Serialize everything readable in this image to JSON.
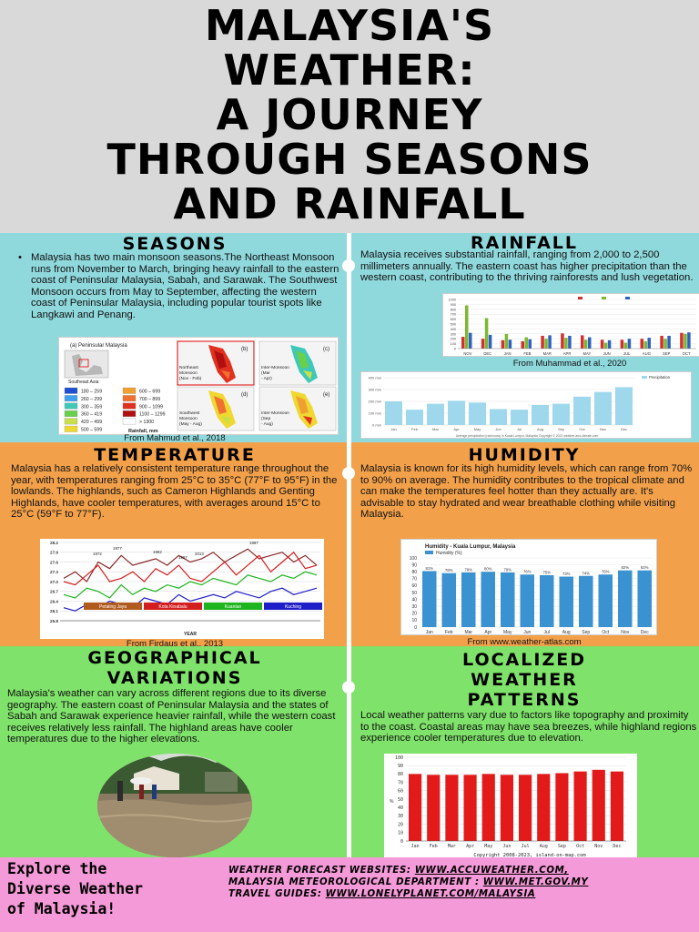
{
  "title": {
    "lines": [
      "MALAYSIA'S",
      "WEATHER:",
      "A JOURNEY",
      "THROUGH SEASONS",
      "AND RAINFALL"
    ]
  },
  "seasons": {
    "heading": "SEASONS",
    "text": "Malaysia has two main monsoon seasons.The Northeast Monsoon runs from November to March, bringing heavy rainfall to the eastern coast of Peninsular Malaysia, Sabah, and Sarawak. The Southwest Monsoon occurs from May to September, affecting the western coast of Peninsular Malaysia, including popular tourist spots like Langkawi and Penang.",
    "caption": "From Mahmud et al., 2018",
    "map": {
      "title": "(a) Peninsular Malaysia",
      "region_label": "Southeast Asia",
      "legend": [
        {
          "range": "180 – 259",
          "color": "#1f4fd1"
        },
        {
          "range": "260 – 299",
          "color": "#3fa0f0"
        },
        {
          "range": "300 – 359",
          "color": "#3fc8b8"
        },
        {
          "range": "360 – 419",
          "color": "#6ad04a"
        },
        {
          "range": "420 – 499",
          "color": "#c8e04a"
        },
        {
          "range": "500 – 599",
          "color": "#f0d830"
        },
        {
          "range": "600 – 699",
          "color": "#f0a030"
        },
        {
          "range": "700 – 899",
          "color": "#f07030"
        },
        {
          "range": "900 – 1099",
          "color": "#e03020"
        },
        {
          "range": "1100 – 1299",
          "color": "#b01010"
        },
        {
          "range": "> 1300",
          "color": "#ffffff"
        }
      ],
      "legend_unit": "Rainfall, mm",
      "panels": [
        {
          "tag": "(b)",
          "label": "Northeast Monsoon (Nov - Feb)"
        },
        {
          "tag": "(c)",
          "label": "Inter-Monsoon (Mar - Apr)"
        },
        {
          "tag": "(d)",
          "label": "Southwest Monsoon (May - Aug)"
        },
        {
          "tag": "(e)",
          "label": "Inter-Monsoon (Sep - Aug)"
        }
      ]
    }
  },
  "rainfall": {
    "heading": "RAINFALL",
    "text": "Malaysia receives substantial rainfall, ranging from 2,000 to 2,500 millimeters annually. The eastern coast has higher precipitation than the western coast, contributing to the thriving rainforests and lush vegetation.",
    "caption": "From Muhammad et al., 2020",
    "chart1": {
      "type": "bar",
      "categories": [
        "NOV",
        "DEC",
        "JAN",
        "FEB",
        "MAR",
        "APR",
        "MAY",
        "JUN",
        "JUL",
        "AUG",
        "SEP",
        "OCT"
      ],
      "ylim": [
        0,
        1000
      ],
      "yticks": [
        0,
        100,
        200,
        300,
        400,
        500,
        600,
        700,
        800,
        900,
        1000
      ],
      "series": [
        {
          "color": "#d23030",
          "values": [
            240,
            200,
            170,
            150,
            260,
            310,
            270,
            180,
            180,
            200,
            260,
            320
          ]
        },
        {
          "color": "#7cb830",
          "values": [
            880,
            620,
            300,
            230,
            200,
            220,
            180,
            120,
            120,
            150,
            200,
            300
          ]
        },
        {
          "color": "#3060c0",
          "values": [
            320,
            280,
            180,
            190,
            270,
            260,
            230,
            170,
            200,
            220,
            260,
            330
          ]
        }
      ]
    },
    "chart2": {
      "type": "bar",
      "legend": "Precipitation",
      "yticks": [
        "0 mm",
        "100 mm",
        "200 mm",
        "300 mm",
        "400 mm"
      ],
      "ylim": [
        0,
        400
      ],
      "categories": [
        "Jan",
        "Feb",
        "Mar",
        "Apr",
        "May",
        "Jun",
        "Jul",
        "Aug",
        "Sep",
        "Oct",
        "Nov",
        "Dec"
      ],
      "values": [
        200,
        130,
        180,
        205,
        190,
        135,
        130,
        170,
        180,
        240,
        280,
        320
      ],
      "source": "Average precipitation (rain/snow) in Kuala Lumpur, Malaysia    Copyright © 2023  weather-and-climate.com"
    }
  },
  "temperature": {
    "heading": "TEMPERATURE",
    "text": "Malaysia has a relatively consistent temperature range throughout the year, with temperatures ranging from 25°C to 35°C (77°F to 95°F) in the lowlands. The highlands, such as Cameron Highlands and Genting Highlands, have cooler temperatures, with averages around 15°C to 25°C (59°F to 77°F).",
    "caption": "From Firdaus et al., 2013",
    "chart": {
      "type": "line",
      "ylim": [
        25.8,
        28.2
      ],
      "yticks": [
        "28.2",
        "27.9",
        "27.6",
        "27.3",
        "27.0",
        "26.7",
        "26.4",
        "26.1",
        "25.8"
      ],
      "xlabel": "YEAR",
      "annotations": [
        "1972",
        "1977",
        "1992",
        "1997",
        "2013",
        "1997"
      ],
      "legend": [
        {
          "name": "Petaling Jaya",
          "color": "#b05a1e"
        },
        {
          "name": "Kota Kinabalu",
          "color": "#d21e1e"
        },
        {
          "name": "Kuantan",
          "color": "#1eb41e"
        },
        {
          "name": "Kuching",
          "color": "#1e1ec8"
        }
      ],
      "series": [
        {
          "name": "Petaling Jaya",
          "color": "#8a2a2a",
          "values": [
            27.1,
            27.3,
            27.0,
            27.6,
            27.4,
            27.8,
            27.5,
            27.6,
            27.7,
            27.5,
            27.8,
            27.6,
            27.7,
            27.9,
            27.6,
            27.8,
            28.0,
            27.7,
            27.8,
            27.9,
            27.6,
            27.8,
            27.5
          ]
        },
        {
          "name": "Kota Kinabalu",
          "color": "#d21e1e",
          "values": [
            27.0,
            26.9,
            27.2,
            27.5,
            27.0,
            27.1,
            27.3,
            27.0,
            27.4,
            27.2,
            27.5,
            27.1,
            27.0,
            27.3,
            27.6,
            27.2,
            27.5,
            27.8,
            27.3,
            27.6,
            27.9,
            27.4,
            27.5
          ]
        },
        {
          "name": "Kuantan",
          "color": "#1eb41e",
          "values": [
            26.6,
            26.5,
            26.8,
            26.7,
            26.5,
            26.9,
            26.6,
            26.8,
            26.7,
            26.9,
            26.8,
            27.0,
            26.9,
            27.1,
            27.0,
            26.9,
            27.2,
            27.1,
            27.0,
            27.2,
            27.1,
            27.3,
            27.2
          ]
        },
        {
          "name": "Kuching",
          "color": "#1e1ec8",
          "values": [
            26.2,
            26.1,
            26.3,
            26.2,
            26.4,
            26.3,
            26.2,
            26.5,
            26.4,
            26.3,
            26.6,
            26.4,
            26.5,
            26.6,
            26.5,
            26.7,
            26.6,
            26.5,
            26.7,
            26.8,
            26.6,
            26.7,
            26.8
          ]
        }
      ]
    }
  },
  "humidity": {
    "heading": "HUMIDITY",
    "text": "Malaysia is known for its high humidity levels, which can range from 70% to 90% on average. The humidity contributes to the tropical climate and can make the temperatures feel hotter than they actually are. It's advisable to stay hydrated and wear breathable clothing while visiting Malaysia.",
    "caption": "From www.weather-atlas.com",
    "chart": {
      "type": "bar",
      "title": "Humidity - Kuala Lumpur, Malaysia",
      "legend": "Humidity (%)",
      "color": "#3b92d0",
      "ylim": [
        0,
        100
      ],
      "yticks": [
        0,
        10,
        20,
        30,
        40,
        50,
        60,
        70,
        80,
        90,
        100
      ],
      "categories": [
        "Jan",
        "Feb",
        "Mar",
        "Apr",
        "May",
        "Jun",
        "Jul",
        "Aug",
        "Sep",
        "Oct",
        "Nov",
        "Dec"
      ],
      "values": [
        81,
        78,
        79,
        80,
        79,
        76,
        75,
        73,
        74,
        76,
        82,
        82
      ],
      "labels": [
        "81%",
        "78%",
        "79%",
        "80%",
        "79%",
        "76%",
        "75%",
        "73%",
        "74%",
        "76%",
        "82%",
        "82%"
      ]
    }
  },
  "geographical": {
    "heading_lines": [
      "GEOGRAPHICAL",
      "VARIATIONS"
    ],
    "text": "Malaysia's weather can vary across different regions due to its diverse geography. The eastern coast of Peninsular Malaysia and the states of Sabah and Sarawak experience heavier rainfall, while the western coast receives relatively less rainfall. The highland areas have cooler temperatures due to the higher elevations."
  },
  "localized": {
    "heading_lines": [
      "LOCALIZED",
      "WEATHER",
      "PATTERNS"
    ],
    "text": "Local weather patterns vary due to factors like topography and proximity to the coast. Coastal areas may have sea breezes, while highland regions experience cooler temperatures due to elevation.",
    "chart": {
      "type": "bar",
      "color": "#e31a1a",
      "ylabel": "%",
      "ylim": [
        0,
        100
      ],
      "yticks": [
        0,
        10,
        20,
        30,
        40,
        50,
        60,
        70,
        80,
        90,
        100
      ],
      "categories": [
        "Jan",
        "Feb",
        "Mar",
        "Apr",
        "May",
        "Jun",
        "Jul",
        "Aug",
        "Sep",
        "Oct",
        "Nov",
        "Dec"
      ],
      "values": [
        80,
        79,
        79,
        79,
        80,
        79,
        79,
        80,
        81,
        83,
        85,
        83
      ],
      "copyright": "Copyright 2008-2023, island-on-map.com"
    }
  },
  "footer": {
    "cta_lines": [
      "Explore the",
      "Diverse Weather",
      "of Malaysia!"
    ],
    "line1_label": "Weather forecast websites: ",
    "line1_link": "www.accuweather.com,",
    "line2_label": "Malaysia Meteorological Department : ",
    "line2_link": "www.met.gov.my",
    "line3_label": "Travel guides: ",
    "line3_link": "www.lonelyplanet.com/malaysia"
  }
}
